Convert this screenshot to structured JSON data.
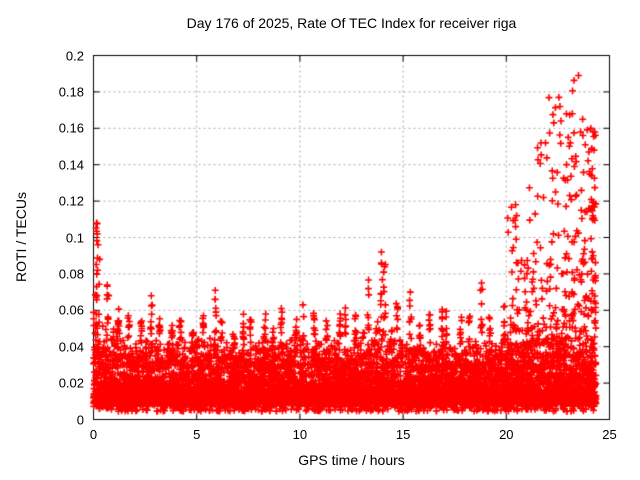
{
  "chart_data": {
    "type": "scatter",
    "title": "Day 176 of 2025, Rate Of TEC Index for receiver riga",
    "xlabel": "GPS time / hours",
    "ylabel": "ROTI / TECUs",
    "xlim": [
      0,
      25
    ],
    "ylim": [
      0,
      0.2
    ],
    "xticks": [
      0,
      5,
      10,
      15,
      20,
      25
    ],
    "xtick_labels": [
      "0",
      "5",
      "10",
      "15",
      "20",
      "25"
    ],
    "yticks": [
      0,
      0.02,
      0.04,
      0.06,
      0.08,
      0.1,
      0.12,
      0.14,
      0.16,
      0.18,
      0.2
    ],
    "ytick_labels": [
      "0",
      "0.02",
      "0.04",
      "0.06",
      "0.08",
      "0.1",
      "0.12",
      "0.14",
      "0.16",
      "0.18",
      "0.2"
    ],
    "grid": {
      "show": true,
      "style": "dashed",
      "color": "#a9a9a9"
    },
    "legend": "none",
    "series": [
      {
        "name": "ROTI",
        "marker": "plus",
        "color": "#ff0000"
      }
    ],
    "data_x_range_hours": [
      0,
      24.35
    ],
    "base_band": {
      "y_min": 0.005,
      "solid_top": 0.035,
      "description": "dense band of points covering all hours"
    },
    "envelope_bins": {
      "bin_width": 0.5,
      "columns": [
        "x_start_hour",
        "band_top",
        "spike_max",
        "spike_x_hour"
      ],
      "bins": [
        [
          0.0,
          0.065,
          0.108,
          0.15
        ],
        [
          0.5,
          0.055,
          0.075,
          0.7
        ],
        [
          1.0,
          0.048,
          0.064,
          1.2
        ],
        [
          1.5,
          0.045,
          0.058,
          1.7
        ],
        [
          2.0,
          0.043,
          0.055,
          2.3
        ],
        [
          2.5,
          0.045,
          0.068,
          2.8
        ],
        [
          3.0,
          0.044,
          0.056,
          3.2
        ],
        [
          3.5,
          0.042,
          0.052,
          3.8
        ],
        [
          4.0,
          0.044,
          0.057,
          4.2
        ],
        [
          4.5,
          0.042,
          0.052,
          4.8
        ],
        [
          5.0,
          0.047,
          0.06,
          5.3
        ],
        [
          5.5,
          0.048,
          0.071,
          5.9
        ],
        [
          6.0,
          0.043,
          0.054,
          6.2
        ],
        [
          6.5,
          0.04,
          0.05,
          6.8
        ],
        [
          7.0,
          0.043,
          0.058,
          7.25
        ],
        [
          7.5,
          0.042,
          0.06,
          7.6
        ],
        [
          8.0,
          0.043,
          0.06,
          8.3
        ],
        [
          8.5,
          0.04,
          0.05,
          8.7
        ],
        [
          9.0,
          0.042,
          0.061,
          9.1
        ],
        [
          9.5,
          0.045,
          0.06,
          9.8
        ],
        [
          10.0,
          0.043,
          0.063,
          10.15
        ],
        [
          10.5,
          0.045,
          0.059,
          10.7
        ],
        [
          11.0,
          0.042,
          0.055,
          11.3
        ],
        [
          11.5,
          0.045,
          0.06,
          11.95
        ],
        [
          12.0,
          0.045,
          0.065,
          12.2
        ],
        [
          12.5,
          0.044,
          0.058,
          12.7
        ],
        [
          13.0,
          0.048,
          0.078,
          13.3
        ],
        [
          13.5,
          0.056,
          0.092,
          13.95
        ],
        [
          14.0,
          0.052,
          0.086,
          14.1
        ],
        [
          14.5,
          0.045,
          0.065,
          14.7
        ],
        [
          15.0,
          0.042,
          0.07,
          15.35
        ],
        [
          15.5,
          0.04,
          0.052,
          15.8
        ],
        [
          16.0,
          0.042,
          0.058,
          16.3
        ],
        [
          16.5,
          0.045,
          0.062,
          16.9
        ],
        [
          17.0,
          0.041,
          0.06,
          17.1
        ],
        [
          17.5,
          0.04,
          0.06,
          17.8
        ],
        [
          18.0,
          0.04,
          0.058,
          18.2
        ],
        [
          18.5,
          0.045,
          0.075,
          18.8
        ],
        [
          19.0,
          0.042,
          0.058,
          19.2
        ],
        [
          19.5,
          0.046,
          0.065,
          19.9
        ],
        [
          20.0,
          0.055,
          0.118,
          20.45
        ],
        [
          20.5,
          0.058,
          0.1,
          20.7
        ],
        [
          21.0,
          0.06,
          0.13,
          21.3
        ],
        [
          21.5,
          0.065,
          0.155,
          21.8
        ],
        [
          22.0,
          0.07,
          0.177,
          22.3
        ],
        [
          22.5,
          0.08,
          0.168,
          22.7
        ],
        [
          23.0,
          0.09,
          0.19,
          23.3
        ],
        [
          23.5,
          0.085,
          0.165,
          23.7
        ],
        [
          24.0,
          0.11,
          0.16,
          24.2
        ]
      ]
    },
    "outlier_points": [
      [
        0.15,
        0.108
      ],
      [
        0.18,
        0.102
      ],
      [
        0.22,
        0.096
      ],
      [
        0.3,
        0.088
      ],
      [
        0.2,
        0.082
      ],
      [
        2.8,
        0.068
      ],
      [
        5.9,
        0.071
      ],
      [
        5.9,
        0.066
      ],
      [
        9.1,
        0.061
      ],
      [
        10.15,
        0.063
      ],
      [
        11.95,
        0.058
      ],
      [
        13.95,
        0.092
      ],
      [
        13.95,
        0.086
      ],
      [
        14.1,
        0.084
      ],
      [
        14.05,
        0.081
      ],
      [
        15.35,
        0.07
      ],
      [
        18.8,
        0.075
      ],
      [
        18.75,
        0.071
      ],
      [
        20.45,
        0.118
      ],
      [
        20.5,
        0.112
      ],
      [
        20.45,
        0.106
      ],
      [
        21.4,
        0.113
      ],
      [
        21.8,
        0.122
      ],
      [
        21.9,
        0.152
      ],
      [
        22.3,
        0.163
      ],
      [
        22.55,
        0.177
      ],
      [
        22.6,
        0.172
      ],
      [
        22.65,
        0.164
      ],
      [
        23.0,
        0.155
      ],
      [
        23.1,
        0.152
      ],
      [
        23.2,
        0.168
      ],
      [
        23.3,
        0.139
      ],
      [
        23.5,
        0.189
      ],
      [
        23.6,
        0.158
      ],
      [
        23.7,
        0.165
      ],
      [
        24.0,
        0.147
      ],
      [
        24.1,
        0.16
      ],
      [
        24.2,
        0.158
      ],
      [
        24.25,
        0.148
      ]
    ],
    "render_seed": 176
  },
  "frame": {
    "background": "#ffffff",
    "axis_color": "#000000"
  }
}
